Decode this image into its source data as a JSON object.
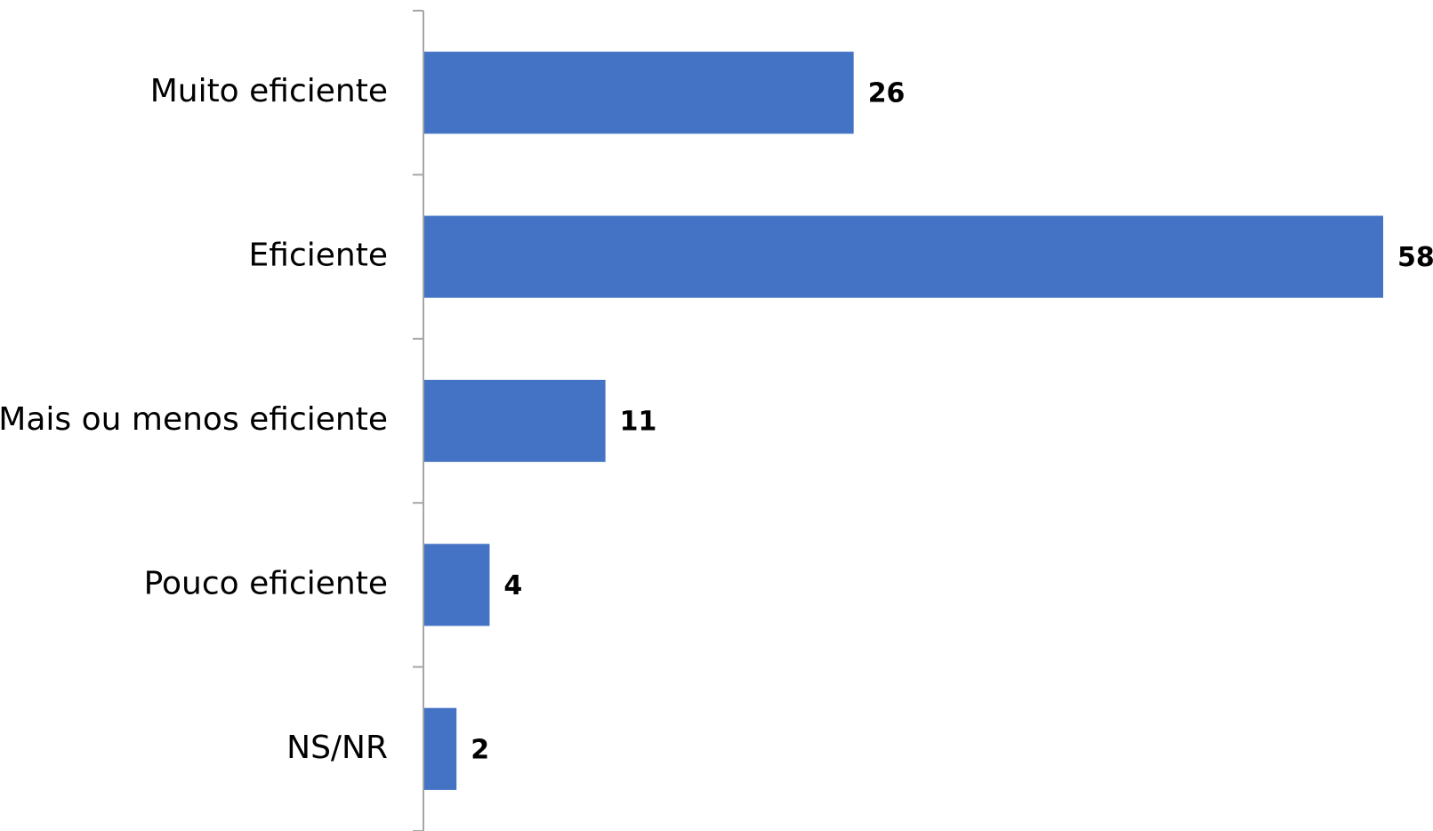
{
  "chart_data": {
    "type": "bar",
    "orientation": "horizontal",
    "categories": [
      "Muito eficiente",
      "Eficiente",
      "Mais ou menos eficiente",
      "Pouco eficiente",
      "NS/NR"
    ],
    "values": [
      26,
      58,
      11,
      4,
      2
    ],
    "data_labels": [
      "26",
      "58",
      "11",
      "4",
      "2"
    ],
    "title": "",
    "xlabel": "",
    "ylabel": "",
    "xlim": [
      0,
      58
    ],
    "grid": false,
    "legend": "none",
    "bar_color": "#4472c4",
    "axis_color": "#a6a6a6"
  }
}
